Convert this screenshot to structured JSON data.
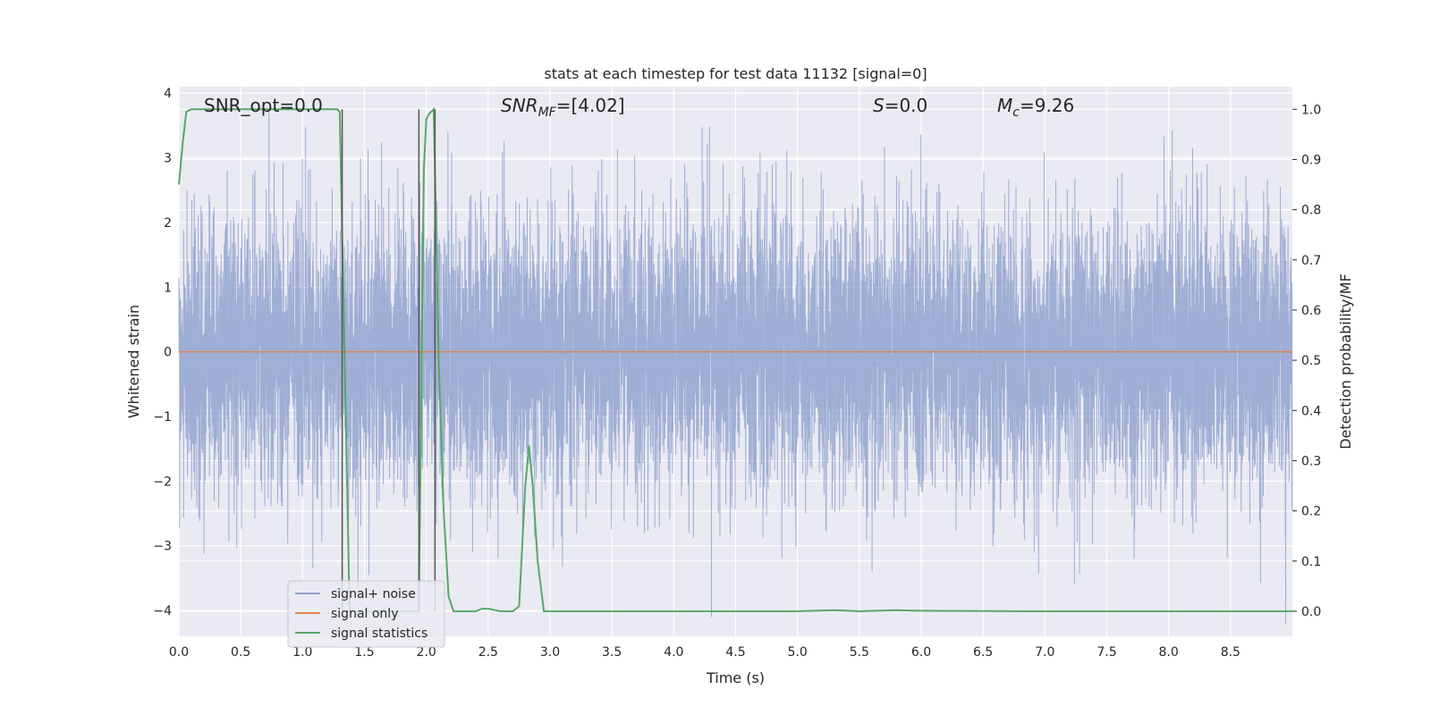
{
  "chart_data": {
    "type": "line",
    "title": "stats at each timestep for test data 11132 [signal=0]",
    "xlabel": "Time (s)",
    "ylabel_left": "Whitened strain",
    "ylabel_right": "Detection probability/MF",
    "xlim": [
      0.0,
      9.0
    ],
    "ylim_left": [
      -4.4,
      4.1
    ],
    "ylim_right": [
      -0.05,
      1.045
    ],
    "xticks": [
      "0.0",
      "0.5",
      "1.0",
      "1.5",
      "2.0",
      "2.5",
      "3.0",
      "3.5",
      "4.0",
      "4.5",
      "5.0",
      "5.5",
      "6.0",
      "6.5",
      "7.0",
      "7.5",
      "8.0",
      "8.5"
    ],
    "yticks_left": [
      "4",
      "3",
      "2",
      "1",
      "0",
      "−1",
      "−2",
      "−3",
      "−4"
    ],
    "yticks_right": [
      "1.0",
      "0.9",
      "0.8",
      "0.7",
      "0.6",
      "0.5",
      "0.4",
      "0.3",
      "0.2",
      "0.1",
      "0.0"
    ],
    "grid": true,
    "legend_position": "lower-left",
    "annotations": {
      "snr_opt": "SNR_opt=0.0",
      "snr_mf_main": "SNR",
      "snr_mf_sub": "MF",
      "snr_mf_value": "=[4.02]",
      "s_main": "S",
      "s_value": "=0.0",
      "mc_main": "M",
      "mc_sub": "c",
      "mc_value": "=9.26"
    },
    "series": [
      {
        "name": "signal+ noise",
        "color": "#8c9fcc",
        "axis": "left",
        "style": "noise",
        "sample_rate_hz": 1000,
        "amplitude_rms": 1.05
      },
      {
        "name": "signal only",
        "color": "#dd8452",
        "axis": "left",
        "x": [
          0.0,
          9.0
        ],
        "y": [
          0.0,
          0.0
        ]
      },
      {
        "name": "signal statistics",
        "color": "#55a868",
        "axis": "right",
        "x": [
          0.0,
          0.03,
          0.06,
          0.1,
          0.15,
          0.2,
          0.3,
          0.5,
          0.8,
          1.0,
          1.2,
          1.28,
          1.3,
          1.34,
          1.38,
          1.42,
          1.5,
          1.7,
          1.9,
          1.94,
          1.96,
          1.98,
          2.0,
          2.02,
          2.06,
          2.1,
          2.14,
          2.18,
          2.22,
          2.4,
          2.45,
          2.5,
          2.6,
          2.7,
          2.75,
          2.8,
          2.83,
          2.86,
          2.9,
          2.95,
          3.0,
          4.0,
          5.0,
          5.3,
          5.5,
          5.8,
          6.0,
          7.0,
          8.0,
          9.0
        ],
        "y": [
          0.85,
          0.93,
          0.995,
          1.0,
          1.0,
          1.0,
          1.0,
          1.0,
          1.0,
          1.0,
          1.0,
          1.0,
          0.995,
          0.5,
          0.0,
          0.0,
          0.0,
          0.0,
          0.0,
          0.0,
          0.45,
          0.88,
          0.98,
          0.99,
          1.0,
          0.5,
          0.2,
          0.03,
          0.0,
          0.0,
          0.005,
          0.005,
          0.0,
          0.0,
          0.01,
          0.25,
          0.33,
          0.25,
          0.1,
          0.0,
          0.0,
          0.0,
          0.0,
          0.002,
          0.0,
          0.002,
          0.001,
          0.0,
          0.0,
          0.0
        ]
      }
    ],
    "vlines": [
      {
        "x": 1.32,
        "color": "#555555"
      },
      {
        "x": 1.94,
        "color": "#555555"
      },
      {
        "x": 2.07,
        "color": "#555555"
      }
    ]
  }
}
